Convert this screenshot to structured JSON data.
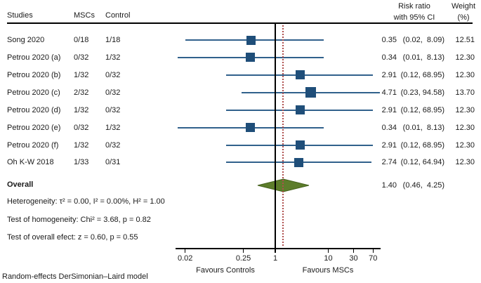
{
  "header": {
    "studies": "Studies",
    "mscs": "MSCs",
    "control": "Control",
    "risk_ratio_line1": "Risk ratio",
    "risk_ratio_line2": "with 95% CI",
    "weight_line1": "Weight",
    "weight_line2": "(%)"
  },
  "chart_data": {
    "type": "forest",
    "x_scale": "log10",
    "axis": {
      "ticks": [
        0.02,
        0.25,
        1,
        10,
        30,
        70
      ],
      "tick_labels": [
        "0.02",
        "0.25",
        "1",
        "10",
        "30",
        "70"
      ],
      "range": [
        0.02,
        70
      ],
      "favours_left": "Favours Controls",
      "favours_right": "Favours MSCs"
    },
    "ref_line": 1,
    "overall_dotted_line": 1.4,
    "studies": [
      {
        "label": "Song 2020",
        "mscs": "0/18",
        "control": "1/18",
        "rr": 0.35,
        "ci_low": 0.02,
        "ci_high": 8.09,
        "rr_text": "0.35",
        "ci_text": "(0.02,  8.09)",
        "weight": "12.51"
      },
      {
        "label": "Petrou 2020 (a)",
        "mscs": "0/32",
        "control": "1/32",
        "rr": 0.34,
        "ci_low": 0.01,
        "ci_high": 8.13,
        "rr_text": "0.34",
        "ci_text": "(0.01,  8.13)",
        "weight": "12.30"
      },
      {
        "label": "Petrou 2020 (b)",
        "mscs": "1/32",
        "control": "0/32",
        "rr": 2.91,
        "ci_low": 0.12,
        "ci_high": 68.95,
        "rr_text": "2.91",
        "ci_text": "(0.12, 68.95)",
        "weight": "12.30"
      },
      {
        "label": "Petrou 2020 (c)",
        "mscs": "2/32",
        "control": "0/32",
        "rr": 4.71,
        "ci_low": 0.23,
        "ci_high": 94.58,
        "rr_text": "4.71",
        "ci_text": "(0.23, 94.58)",
        "weight": "13.70"
      },
      {
        "label": "Petrou 2020 (d)",
        "mscs": "1/32",
        "control": "0/32",
        "rr": 2.91,
        "ci_low": 0.12,
        "ci_high": 68.95,
        "rr_text": "2.91",
        "ci_text": "(0.12, 68.95)",
        "weight": "12.30"
      },
      {
        "label": "Petrou 2020 (e)",
        "mscs": "0/32",
        "control": "1/32",
        "rr": 0.34,
        "ci_low": 0.01,
        "ci_high": 8.13,
        "rr_text": "0.34",
        "ci_text": "(0.01,  8.13)",
        "weight": "12.30"
      },
      {
        "label": "Petrou 2020 (f)",
        "mscs": "1/32",
        "control": "0/32",
        "rr": 2.91,
        "ci_low": 0.12,
        "ci_high": 68.95,
        "rr_text": "2.91",
        "ci_text": "(0.12, 68.95)",
        "weight": "12.30"
      },
      {
        "label": "Oh K-W 2018",
        "mscs": "1/33",
        "control": "0/31",
        "rr": 2.74,
        "ci_low": 0.12,
        "ci_high": 64.94,
        "rr_text": "2.74",
        "ci_text": "(0.12, 64.94)",
        "weight": "12.30"
      }
    ],
    "overall": {
      "label": "Overall",
      "rr": 1.4,
      "ci_low": 0.46,
      "ci_high": 4.25,
      "rr_text": "1.40",
      "ci_text": "(0.46,  4.25)"
    },
    "colors": {
      "ci_line": "#31618c",
      "square": "#1f4e79",
      "diamond_fill": "#5d7d2b",
      "diamond_stroke": "#45621d",
      "ref_line": "#000000",
      "overall_dotted": "#b0504f"
    }
  },
  "stats": {
    "heterogeneity": "Heterogeneity: τ² = 0.00, I² = 0.00%, H² = 1.00",
    "homogeneity": "Test of homogeneity: Chi² = 3.68, p = 0.82",
    "overall_effect": "Test of overall efect: z = 0.60, p = 0.55"
  },
  "footer": {
    "model": "Random-effects DerSimonian–Laird model"
  }
}
